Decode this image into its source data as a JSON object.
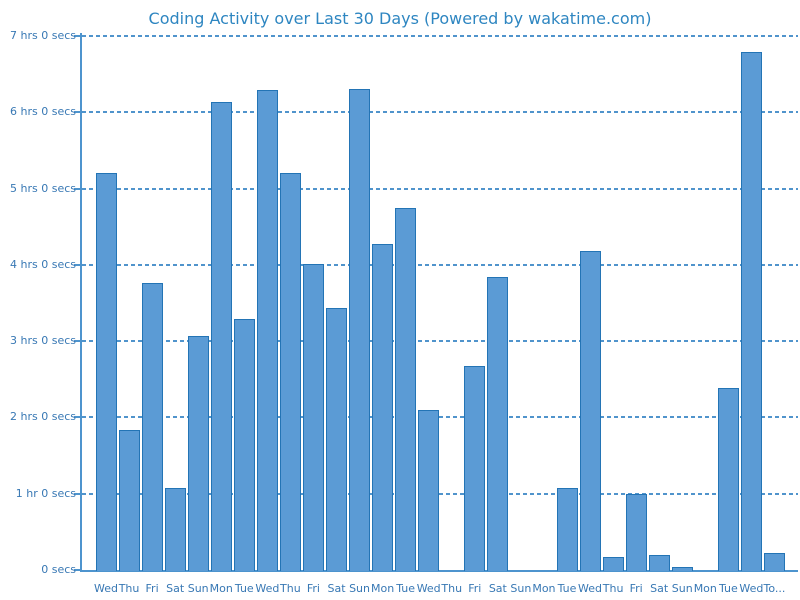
{
  "title": "Coding Activity over Last 30 Days (Powered by wakatime.com)",
  "chart_data": {
    "type": "bar",
    "title": "Coding Activity over Last 30 Days (Powered by wakatime.com)",
    "xlabel": "",
    "ylabel": "",
    "unit": "hours",
    "ylim": [
      0,
      7
    ],
    "grid": true,
    "legend": false,
    "y_tick_labels": [
      "0 secs",
      "1 hr 0 secs",
      "2 hrs 0 secs",
      "3 hrs 0 secs",
      "4 hrs 0 secs",
      "5 hrs 0 secs",
      "6 hrs 0 secs",
      "7 hrs 0 secs"
    ],
    "categories": [
      "Wed",
      "Thu",
      "Fri",
      "Sat",
      "Sun",
      "Mon",
      "Tue",
      "Wed",
      "Thu",
      "Fri",
      "Sat",
      "Sun",
      "Mon",
      "Tue",
      "Wed",
      "Thu",
      "Fri",
      "Sat",
      "Sun",
      "Mon",
      "Tue",
      "Wed",
      "Thu",
      "Fri",
      "Sat",
      "Sun",
      "Mon",
      "Tue",
      "Wed",
      "To..."
    ],
    "values": [
      5.2,
      1.83,
      3.76,
      1.08,
      3.07,
      6.13,
      3.29,
      6.29,
      5.2,
      4.01,
      3.43,
      6.3,
      4.27,
      4.74,
      2.1,
      0,
      2.68,
      3.84,
      0,
      0,
      1.08,
      4.18,
      0.17,
      1.0,
      0.2,
      0.04,
      0,
      2.38,
      6.79,
      0.22
    ],
    "colors": {
      "bar_fill": "#5B9BD5",
      "bar_border": "#2374B5",
      "gridline": "#5094CC",
      "axis": "#4D94CE",
      "title_text": "#2E86C1",
      "tick_text": "#3878B4",
      "background": "#FFFFFF"
    }
  }
}
